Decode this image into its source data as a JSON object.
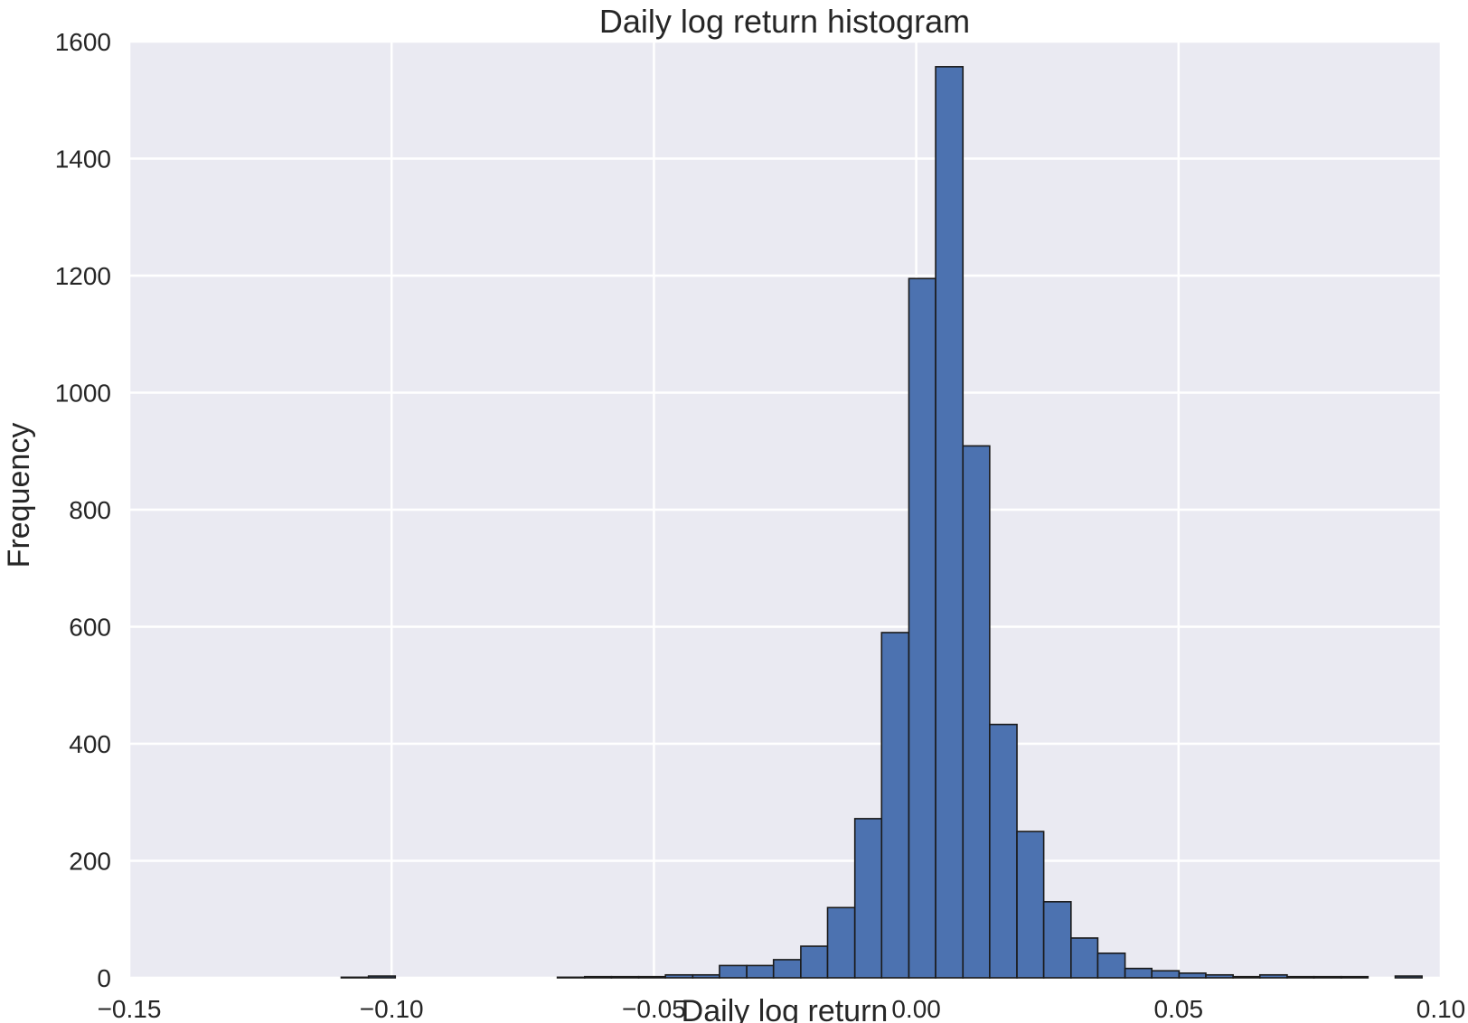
{
  "chart_data": {
    "type": "bar",
    "title": "Daily log return histogram",
    "xlabel": "Daily log return",
    "ylabel": "Frequency",
    "xlim": [
      -0.15,
      0.1
    ],
    "ylim": [
      0,
      1600
    ],
    "x_ticks": [
      -0.15,
      -0.1,
      -0.05,
      0.0,
      0.05,
      0.1
    ],
    "x_tick_labels": [
      "−0.15",
      "−0.10",
      "−0.05",
      "0.00",
      "0.05",
      "0.10"
    ],
    "y_ticks": [
      0,
      200,
      400,
      600,
      800,
      1000,
      1200,
      1400,
      1600
    ],
    "y_tick_labels": [
      "0",
      "200",
      "400",
      "600",
      "800",
      "1000",
      "1200",
      "1400",
      "1600"
    ],
    "grid": true,
    "bin_edges": [
      -0.1096,
      -0.1044,
      -0.0993,
      -0.0941,
      -0.089,
      -0.0838,
      -0.0787,
      -0.0735,
      -0.0684,
      -0.0632,
      -0.0581,
      -0.0529,
      -0.0478,
      -0.0426,
      -0.0375,
      -0.0323,
      -0.0272,
      -0.022,
      -0.0169,
      -0.0117,
      -0.0066,
      -0.0014,
      0.0037,
      0.0089,
      0.014,
      0.0192,
      0.0243,
      0.0295,
      0.0346,
      0.0398,
      0.0449,
      0.0501,
      0.0552,
      0.0604,
      0.0655,
      0.0707,
      0.0758,
      0.081,
      0.0861,
      0.0913,
      0.0964
    ],
    "counts": [
      1,
      3,
      0,
      0,
      0,
      0,
      0,
      0,
      1,
      2,
      2,
      2,
      5,
      5,
      21,
      21,
      31,
      54,
      120,
      272,
      590,
      1195,
      1557,
      909,
      433,
      250,
      130,
      68,
      42,
      16,
      12,
      8,
      5,
      2,
      5,
      2,
      2,
      2,
      0,
      3
    ],
    "colors": {
      "bar": "#4c72b0",
      "bar_edge": "#1a1a1a",
      "plot_bg": "#eaeaf2",
      "grid": "#ffffff"
    }
  }
}
